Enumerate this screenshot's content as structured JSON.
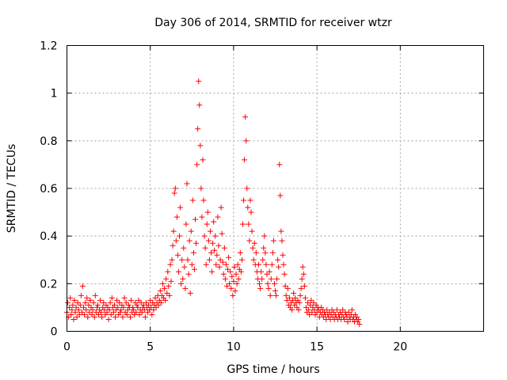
{
  "chart_data": {
    "type": "scatter",
    "title": "Day 306 of 2014, SRMTID for receiver wtzr",
    "xlabel": "GPS time / hours",
    "ylabel": "SRMTID / TECUs",
    "xlim": [
      0,
      25
    ],
    "ylim": [
      0,
      1.2
    ],
    "xticks": [
      0,
      5,
      10,
      15,
      20
    ],
    "xtick_labels": [
      "0",
      "5",
      "10",
      "15",
      "20"
    ],
    "yticks": [
      0,
      0.2,
      0.4,
      0.6,
      0.8,
      1,
      1.2
    ],
    "ytick_labels": [
      "0",
      "0.2",
      "0.4",
      "0.6",
      "0.8",
      "1",
      "1.2"
    ],
    "grid": true,
    "marker": "+",
    "color": "#ff0000",
    "series": [
      {
        "name": "SRMTID",
        "x_start": 0,
        "x_step": 0.05,
        "values": [
          0.08,
          0.12,
          0.06,
          0.1,
          0.14,
          0.07,
          0.09,
          0.11,
          0.05,
          0.13,
          0.08,
          0.1,
          0.06,
          0.12,
          0.09,
          0.07,
          0.11,
          0.15,
          0.08,
          0.19,
          0.1,
          0.07,
          0.12,
          0.09,
          0.14,
          0.06,
          0.11,
          0.08,
          0.13,
          0.1,
          0.07,
          0.09,
          0.12,
          0.06,
          0.15,
          0.08,
          0.1,
          0.11,
          0.07,
          0.09,
          0.13,
          0.08,
          0.06,
          0.1,
          0.12,
          0.09,
          0.07,
          0.11,
          0.08,
          0.1,
          0.05,
          0.09,
          0.12,
          0.07,
          0.14,
          0.1,
          0.08,
          0.11,
          0.06,
          0.09,
          0.13,
          0.1,
          0.07,
          0.12,
          0.08,
          0.09,
          0.11,
          0.06,
          0.1,
          0.14,
          0.08,
          0.12,
          0.07,
          0.09,
          0.11,
          0.1,
          0.06,
          0.13,
          0.08,
          0.1,
          0.09,
          0.07,
          0.12,
          0.08,
          0.11,
          0.1,
          0.13,
          0.07,
          0.09,
          0.12,
          0.08,
          0.1,
          0.11,
          0.09,
          0.06,
          0.12,
          0.1,
          0.08,
          0.11,
          0.09,
          0.13,
          0.1,
          0.07,
          0.12,
          0.09,
          0.11,
          0.14,
          0.1,
          0.12,
          0.15,
          0.11,
          0.13,
          0.17,
          0.12,
          0.15,
          0.2,
          0.14,
          0.18,
          0.13,
          0.22,
          0.16,
          0.25,
          0.19,
          0.15,
          0.28,
          0.21,
          0.3,
          0.36,
          0.42,
          0.58,
          0.6,
          0.38,
          0.48,
          0.32,
          0.25,
          0.4,
          0.52,
          0.2,
          0.3,
          0.22,
          0.35,
          0.27,
          0.18,
          0.45,
          0.62,
          0.3,
          0.24,
          0.38,
          0.16,
          0.42,
          0.28,
          0.55,
          0.33,
          0.26,
          0.47,
          0.37,
          0.7,
          0.85,
          1.05,
          0.95,
          0.78,
          0.6,
          0.48,
          0.72,
          0.55,
          0.4,
          0.35,
          0.28,
          0.45,
          0.5,
          0.38,
          0.3,
          0.42,
          0.33,
          0.25,
          0.37,
          0.46,
          0.34,
          0.4,
          0.28,
          0.32,
          0.48,
          0.36,
          0.27,
          0.3,
          0.52,
          0.41,
          0.29,
          0.24,
          0.35,
          0.22,
          0.28,
          0.19,
          0.26,
          0.31,
          0.2,
          0.25,
          0.18,
          0.23,
          0.15,
          0.21,
          0.27,
          0.17,
          0.24,
          0.2,
          0.28,
          0.22,
          0.26,
          0.33,
          0.25,
          0.3,
          0.45,
          0.55,
          0.72,
          0.9,
          0.8,
          0.6,
          0.52,
          0.45,
          0.38,
          0.55,
          0.5,
          0.42,
          0.35,
          0.3,
          0.37,
          0.28,
          0.33,
          0.25,
          0.22,
          0.28,
          0.2,
          0.18,
          0.25,
          0.22,
          0.3,
          0.35,
          0.4,
          0.33,
          0.28,
          0.24,
          0.2,
          0.18,
          0.25,
          0.15,
          0.22,
          0.28,
          0.33,
          0.38,
          0.2,
          0.17,
          0.15,
          0.22,
          0.3,
          0.27,
          0.7,
          0.57,
          0.42,
          0.38,
          0.32,
          0.28,
          0.24,
          0.19,
          0.15,
          0.13,
          0.18,
          0.11,
          0.14,
          0.1,
          0.12,
          0.09,
          0.13,
          0.16,
          0.11,
          0.14,
          0.12,
          0.1,
          0.13,
          0.09,
          0.12,
          0.15,
          0.18,
          0.22,
          0.27,
          0.24,
          0.19,
          0.14,
          0.1,
          0.08,
          0.12,
          0.09,
          0.07,
          0.11,
          0.13,
          0.08,
          0.1,
          0.12,
          0.09,
          0.07,
          0.11,
          0.08,
          0.1,
          0.09,
          0.06,
          0.08,
          0.1,
          0.07,
          0.09,
          0.06,
          0.08,
          0.07,
          0.05,
          0.09,
          0.07,
          0.06,
          0.08,
          0.05,
          0.07,
          0.09,
          0.06,
          0.08,
          0.05,
          0.07,
          0.06,
          0.09,
          0.05,
          0.07,
          0.06,
          0.08,
          0.05,
          0.07,
          0.09,
          0.06,
          0.05,
          0.08,
          0.07,
          0.06,
          0.04,
          0.08,
          0.06,
          0.05,
          0.07,
          0.09,
          0.05,
          0.06,
          0.04,
          0.07,
          0.05,
          0.06,
          0.04,
          0.05,
          0.03
        ]
      }
    ]
  }
}
